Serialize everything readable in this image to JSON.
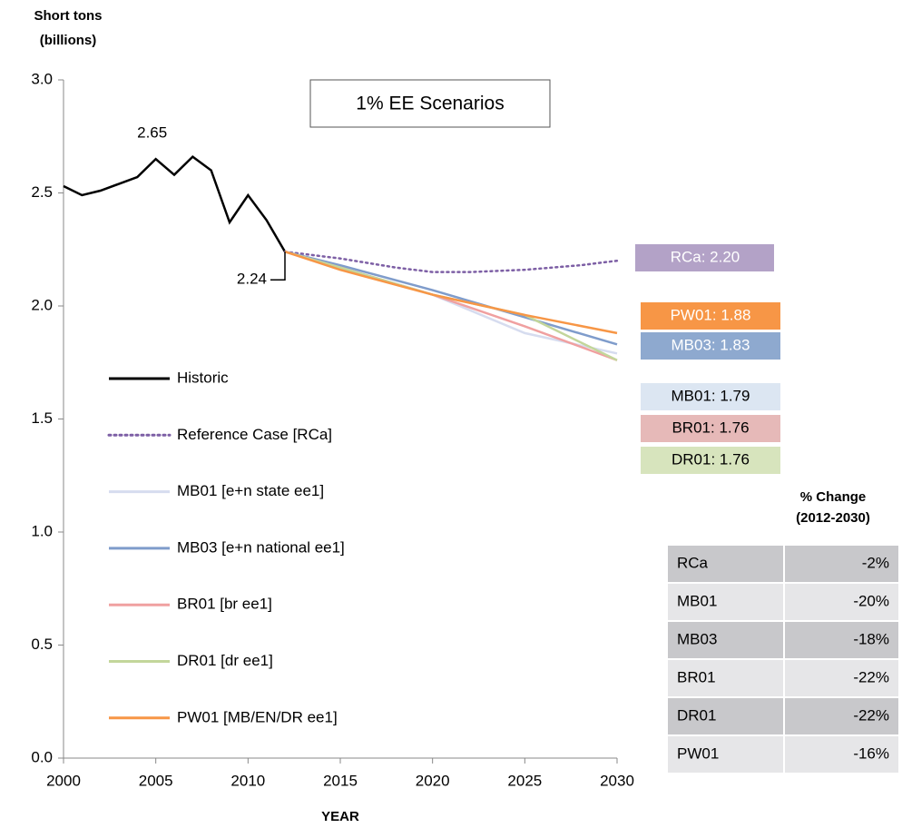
{
  "chart_data": {
    "type": "line",
    "title": "1% EE Scenarios",
    "ylabel": [
      "Short tons",
      "(billions)"
    ],
    "xlabel": "YEAR",
    "xlim": [
      2000,
      2030
    ],
    "xticks": [
      2000,
      2005,
      2010,
      2015,
      2020,
      2025,
      2030
    ],
    "ylim": [
      0,
      3
    ],
    "yticks": [
      {
        "value": 0,
        "label": "0.0"
      },
      0.5,
      {
        "value": 1,
        "label": "1.0"
      },
      1.5,
      {
        "value": 2,
        "label": "2.0"
      },
      2.5,
      {
        "value": 3,
        "label": "3.0"
      }
    ],
    "grid": false,
    "annotations": [
      {
        "text": "2.65",
        "x": 2005,
        "y": 2.65
      },
      {
        "text": "2.24",
        "x": 2012,
        "y": 2.24
      }
    ],
    "series": [
      {
        "name": "Historic",
        "color": "#000000",
        "style": "solid",
        "x": [
          2000,
          2001,
          2002,
          2003,
          2004,
          2005,
          2006,
          2007,
          2008,
          2009,
          2010,
          2011,
          2012
        ],
        "values": [
          2.53,
          2.49,
          2.51,
          2.54,
          2.57,
          2.65,
          2.58,
          2.66,
          2.6,
          2.37,
          2.49,
          2.38,
          2.24
        ]
      },
      {
        "name": "Reference Case [RCa]",
        "color": "#7d5fa5",
        "style": "dotted",
        "x": [
          2012,
          2015,
          2018,
          2020,
          2022,
          2025,
          2028,
          2030
        ],
        "values": [
          2.24,
          2.21,
          2.17,
          2.15,
          2.15,
          2.16,
          2.18,
          2.2
        ],
        "end_label": "RCa: 2.20",
        "label_fill": "#b3a2c7",
        "label_color": "#ffffff"
      },
      {
        "name": "MB01 [e+n state ee1]",
        "color": "#d6dcef",
        "style": "solid",
        "x": [
          2012,
          2015,
          2020,
          2025,
          2030
        ],
        "values": [
          2.24,
          2.17,
          2.05,
          1.88,
          1.79
        ],
        "end_label": "MB01: 1.79",
        "label_fill": "#dce6f2",
        "label_color": "#000000"
      },
      {
        "name": "MB03 [e+n national ee1]",
        "color": "#7f9ccb",
        "style": "solid",
        "x": [
          2012,
          2015,
          2020,
          2025,
          2030
        ],
        "values": [
          2.24,
          2.18,
          2.07,
          1.95,
          1.83
        ],
        "end_label": "MB03: 1.83",
        "label_fill": "#8ea9cf",
        "label_color": "#ffffff"
      },
      {
        "name": "BR01 [br ee1]",
        "color": "#f0a0a0",
        "style": "solid",
        "x": [
          2012,
          2015,
          2020,
          2025,
          2030
        ],
        "values": [
          2.24,
          2.17,
          2.05,
          1.91,
          1.76
        ],
        "end_label": "BR01: 1.76",
        "label_fill": "#e6b9b8",
        "label_color": "#000000"
      },
      {
        "name": "DR01 [dr ee1]",
        "color": "#c3d69b",
        "style": "solid",
        "x": [
          2012,
          2015,
          2020,
          2025,
          2030
        ],
        "values": [
          2.24,
          2.17,
          2.05,
          1.96,
          1.76
        ],
        "end_label": "DR01: 1.76",
        "label_fill": "#d7e4bd",
        "label_color": "#000000"
      },
      {
        "name": "PW01 [MB/EN/DR ee1]",
        "color": "#f79646",
        "style": "solid",
        "x": [
          2012,
          2015,
          2020,
          2025,
          2030
        ],
        "values": [
          2.24,
          2.16,
          2.05,
          1.96,
          1.88
        ],
        "end_label": "PW01: 1.88",
        "label_fill": "#f79646",
        "label_color": "#ffffff"
      }
    ]
  },
  "table": {
    "header": [
      "% Change",
      "(2012-2030)"
    ],
    "rows": [
      [
        "RCa",
        "-2%"
      ],
      [
        "MB01",
        "-20%"
      ],
      [
        "MB03",
        "-18%"
      ],
      [
        "BR01",
        "-22%"
      ],
      [
        "DR01",
        "-22%"
      ],
      [
        "PW01",
        "-16%"
      ]
    ]
  }
}
